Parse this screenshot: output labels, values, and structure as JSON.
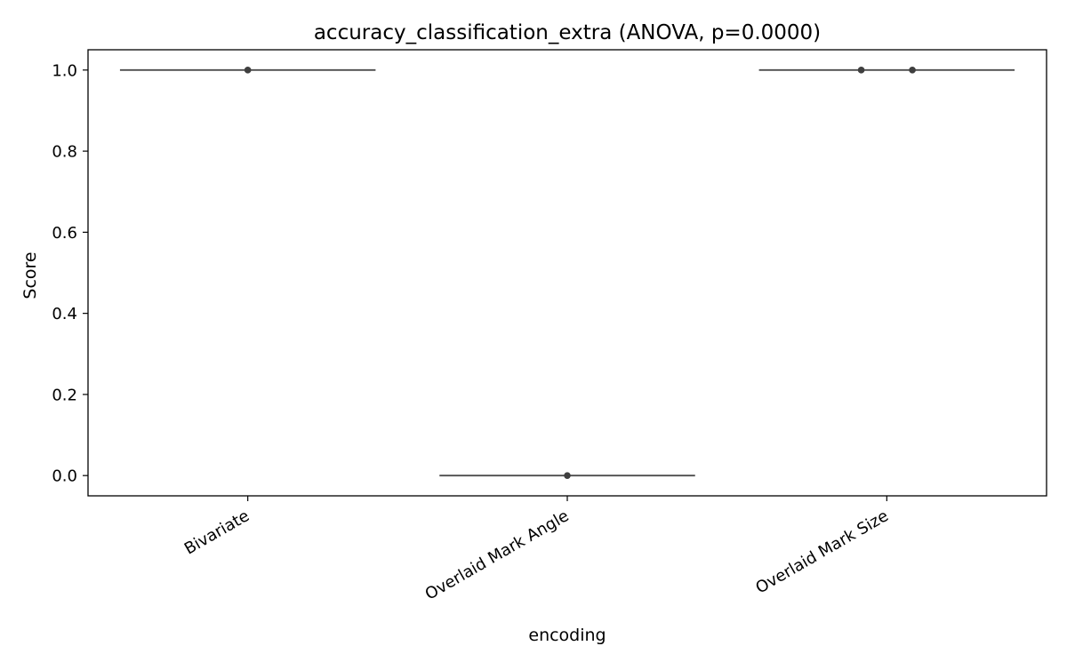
{
  "chart_data": {
    "type": "violin",
    "title": "accuracy_classification_extra (ANOVA, p=0.0000)",
    "xlabel": "encoding",
    "ylabel": "Score",
    "categories": [
      "Bivariate",
      "Overlaid Mark Angle",
      "Overlaid Mark Size"
    ],
    "ylim": [
      -0.05,
      1.05
    ],
    "yticks": [
      0.0,
      0.2,
      0.4,
      0.6,
      0.8,
      1.0
    ],
    "ytick_labels": [
      "0.0",
      "0.2",
      "0.4",
      "0.6",
      "0.8",
      "1.0"
    ],
    "distributions": [
      {
        "category": "Bivariate",
        "value": 1.0,
        "points": [
          1.0
        ]
      },
      {
        "category": "Overlaid Mark Angle",
        "value": 0.0,
        "points": [
          0.0
        ]
      },
      {
        "category": "Overlaid Mark Size",
        "value": 1.0,
        "points": [
          1.0,
          1.0
        ]
      }
    ],
    "grid": false,
    "legend": "none",
    "colors": {
      "line": "#4d4d4d",
      "point": "#3f3f3f",
      "axis": "#000000"
    }
  }
}
